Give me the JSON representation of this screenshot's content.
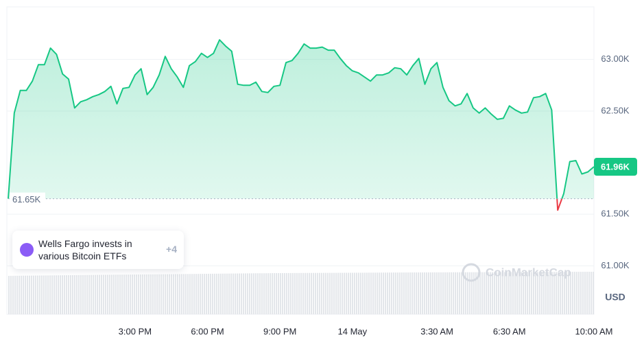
{
  "chart_data": {
    "type": "line",
    "x": [
      9.75,
      10,
      10.25,
      10.5,
      10.75,
      11,
      11.25,
      11.5,
      11.75,
      12,
      12.25,
      12.5,
      12.75,
      13,
      13.25,
      13.5,
      13.75,
      14,
      14.25,
      14.5,
      14.75,
      15,
      15.25,
      15.5,
      15.75,
      16,
      16.25,
      16.5,
      16.75,
      17,
      17.25,
      17.5,
      17.75,
      18,
      18.25,
      18.5,
      18.75,
      19,
      19.25,
      19.5,
      19.75,
      20,
      20.25,
      20.5,
      20.75,
      21,
      21.25,
      21.5,
      21.75,
      22,
      22.25,
      22.5,
      22.75,
      23,
      23.25,
      23.5,
      23.75,
      24,
      24.25,
      24.5,
      24.75,
      25,
      25.25,
      25.5,
      25.75,
      26,
      26.25,
      26.5,
      26.75,
      27,
      27.25,
      27.5,
      27.75,
      28,
      28.25,
      28.5,
      28.75,
      29,
      29.25,
      29.5,
      29.75,
      30,
      30.25,
      30.5,
      30.75,
      31,
      31.25,
      31.5,
      31.75,
      32,
      32.25,
      32.5,
      32.75,
      33,
      33.25,
      33.5,
      33.75,
      34
    ],
    "values": [
      61.65,
      62.48,
      62.7,
      62.7,
      62.79,
      62.95,
      62.95,
      63.11,
      63.05,
      62.86,
      62.81,
      62.53,
      62.59,
      62.61,
      62.64,
      62.66,
      62.69,
      62.74,
      62.57,
      62.72,
      62.73,
      62.85,
      62.91,
      62.66,
      62.73,
      62.85,
      63.03,
      62.91,
      62.83,
      62.73,
      62.94,
      62.98,
      63.06,
      63.02,
      63.06,
      63.19,
      63.13,
      63.08,
      62.76,
      62.75,
      62.75,
      62.78,
      62.69,
      62.68,
      62.74,
      62.75,
      62.97,
      62.99,
      63.06,
      63.15,
      63.11,
      63.11,
      63.12,
      63.09,
      63.09,
      63.01,
      62.94,
      62.89,
      62.87,
      62.83,
      62.79,
      62.85,
      62.85,
      62.87,
      62.92,
      62.91,
      62.85,
      62.94,
      63.01,
      62.76,
      62.91,
      62.97,
      62.73,
      62.6,
      62.55,
      62.57,
      62.67,
      62.53,
      62.48,
      62.53,
      62.47,
      62.42,
      62.43,
      62.55,
      62.51,
      62.48,
      62.49,
      62.63,
      62.64,
      62.67,
      62.51,
      61.54,
      61.7,
      62.01,
      62.02,
      61.89,
      61.91,
      61.96
    ],
    "color": "#16c784",
    "down_color": "#ea3943",
    "xlim": [
      9.75,
      34
    ],
    "xticks": [
      {
        "value": 15,
        "label": "3:00 PM"
      },
      {
        "value": 18,
        "label": "6:00 PM"
      },
      {
        "value": 21,
        "label": "9:00 PM"
      },
      {
        "value": 24,
        "label": "14 May"
      },
      {
        "value": 27.5,
        "label": "3:30 AM"
      },
      {
        "value": 30.5,
        "label": "6:30 AM"
      },
      {
        "value": 34,
        "label": "10:00 AM"
      }
    ],
    "ylim": [
      60.53,
      63.51
    ],
    "yticks": [
      {
        "value": 61,
        "label": "61.00K"
      },
      {
        "value": 61.5,
        "label": "61.50K"
      },
      {
        "value": 62.5,
        "label": "62.50K"
      },
      {
        "value": 63,
        "label": "63.00K"
      }
    ],
    "baseline": {
      "value": 61.65,
      "label": "61.65K"
    },
    "last_price": {
      "value": 61.96,
      "label": "61.96K"
    },
    "unit_label": "USD",
    "watermark": "CoinMarketCap",
    "annotation": {
      "text": "Wells Fargo invests in various Bitcoin ETFs",
      "count_label": "+4"
    },
    "grid": true
  }
}
